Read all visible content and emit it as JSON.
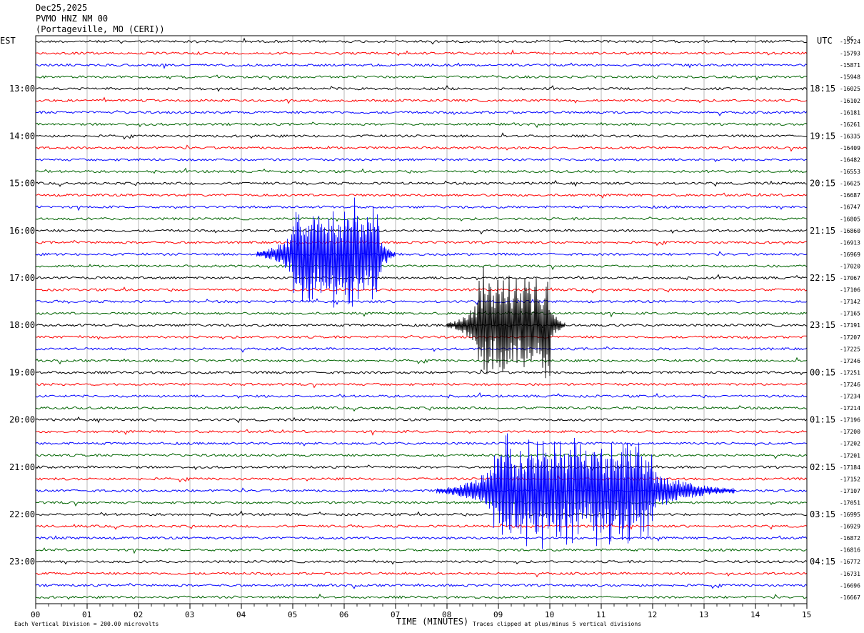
{
  "header": {
    "date": "Dec25,2025",
    "station": "PVMO HNZ NM 00",
    "location": "(Portageville, MO (CERI))"
  },
  "chart_data": {
    "type": "line",
    "title": "",
    "xlabel": "TIME (MINUTES)",
    "left_tz": "EST",
    "right_tz": "UTC",
    "dc_label": "DC",
    "xlim": [
      0,
      15
    ],
    "x_ticks": [
      "00",
      "01",
      "02",
      "03",
      "04",
      "05",
      "06",
      "07",
      "08",
      "09",
      "10",
      "11",
      "12",
      "13",
      "14",
      "15"
    ],
    "n_traces": 48,
    "trace_colors": [
      "#000000",
      "#ff0000",
      "#0000ff",
      "#006400"
    ],
    "left_hour_labels": [
      {
        "trace": 4,
        "label": "13:00"
      },
      {
        "trace": 8,
        "label": "14:00"
      },
      {
        "trace": 12,
        "label": "15:00"
      },
      {
        "trace": 16,
        "label": "16:00"
      },
      {
        "trace": 20,
        "label": "17:00"
      },
      {
        "trace": 24,
        "label": "18:00"
      },
      {
        "trace": 28,
        "label": "19:00"
      },
      {
        "trace": 32,
        "label": "20:00"
      },
      {
        "trace": 36,
        "label": "21:00"
      },
      {
        "trace": 40,
        "label": "22:00"
      },
      {
        "trace": 44,
        "label": "23:00"
      }
    ],
    "right_hour_labels": [
      {
        "trace": 4,
        "label": "18:15"
      },
      {
        "trace": 8,
        "label": "19:15"
      },
      {
        "trace": 12,
        "label": "20:15"
      },
      {
        "trace": 16,
        "label": "21:15"
      },
      {
        "trace": 20,
        "label": "22:15"
      },
      {
        "trace": 24,
        "label": "23:15"
      },
      {
        "trace": 28,
        "label": "00:15"
      },
      {
        "trace": 32,
        "label": "01:15"
      },
      {
        "trace": 36,
        "label": "02:15"
      },
      {
        "trace": 40,
        "label": "03:15"
      },
      {
        "trace": 44,
        "label": "04:15"
      }
    ],
    "dc_offsets": [
      "-15724",
      "-15793",
      "-15871",
      "-15948",
      "-16025",
      "-16102",
      "-16181",
      "-16261",
      "-16335",
      "-16409",
      "-16482",
      "-16553",
      "-16625",
      "-16687",
      "-16747",
      "-16805",
      "-16860",
      "-16913",
      "-16969",
      "-17020",
      "-17067",
      "-17106",
      "-17142",
      "-17165",
      "-17191",
      "-17207",
      "-17225",
      "-17246",
      "-17251",
      "-17246",
      "-17234",
      "-17214",
      "-17196",
      "-17200",
      "-17202",
      "-17201",
      "-17184",
      "-17152",
      "-17107",
      "-17051",
      "-16995",
      "-16929",
      "-16872",
      "-16816",
      "-16772",
      "-16731",
      "-16696",
      "-16667"
    ],
    "events": [
      {
        "trace": 18,
        "start_min": 4.3,
        "end_min": 7.0,
        "peak_start_min": 5.0,
        "peak_end_min": 6.7,
        "clipped": true
      },
      {
        "trace": 24,
        "start_min": 8.0,
        "end_min": 10.3,
        "peak_start_min": 8.6,
        "peak_end_min": 10.0,
        "clipped": true
      },
      {
        "trace": 38,
        "start_min": 7.8,
        "end_min": 13.6,
        "peak_start_min": 8.9,
        "peak_end_min": 12.0,
        "clipped": true
      }
    ],
    "footer_left": "Each Vertical Division =  200.00 microvolts",
    "footer_right": "Traces clipped at plus/minus 5 vertical divisions"
  }
}
